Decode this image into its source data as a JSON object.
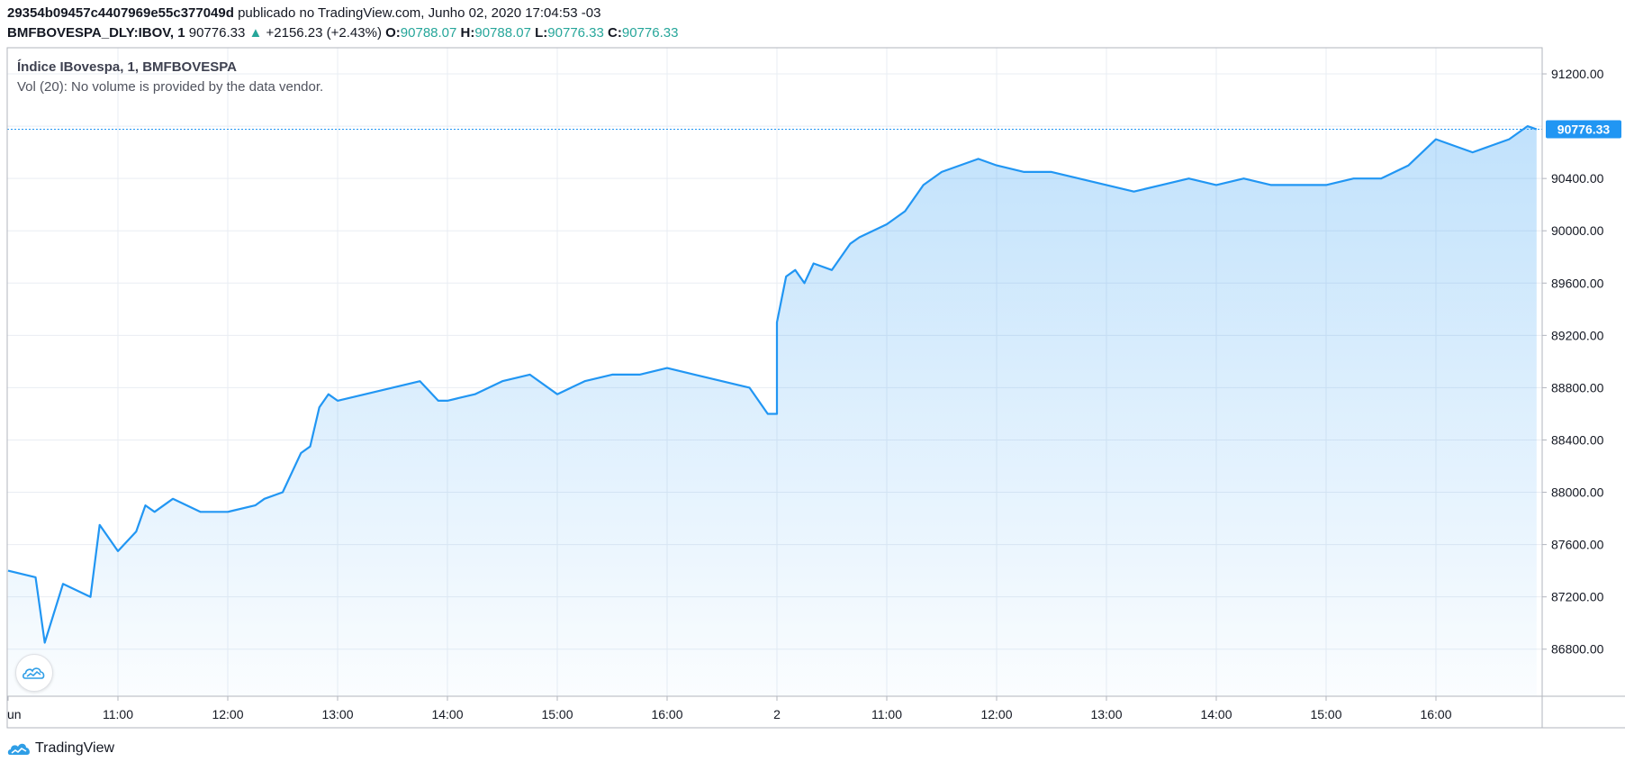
{
  "header": {
    "id": "29354b09457c4407969e55c377049d",
    "published": "publicado no TradingView.com, Junho 02, 2020 17:04:53 -03",
    "symbol": "BMFBOVESPA_DLY:IBOV, 1",
    "last": "90776.33",
    "change_arrow": "▲",
    "change": "+2156.23 (+2.43%)",
    "o_label": "O:",
    "o_value": "90788.07",
    "h_label": "H:",
    "h_value": "90788.07",
    "l_label": "L:",
    "l_value": "90776.33",
    "c_label": "C:",
    "c_value": "90776.33"
  },
  "overlay": {
    "title": "Índice IBovespa, 1, BMFBOVESPA",
    "volume": "Vol (20): No volume is provided by the data vendor."
  },
  "footer": {
    "brand": "TradingView"
  },
  "colors": {
    "line": "#2196f3",
    "price_label_bg": "#2196f3",
    "up": "#26a69a",
    "grid": "#e9edf3"
  },
  "chart_data": {
    "type": "area",
    "x_ticks": [
      "un",
      "11:00",
      "12:00",
      "13:00",
      "14:00",
      "15:00",
      "16:00",
      "2",
      "11:00",
      "12:00",
      "13:00",
      "14:00",
      "15:00",
      "16:00"
    ],
    "y_ticks": [
      91200,
      90800,
      90400,
      90000,
      89600,
      89200,
      88800,
      88400,
      88000,
      87600,
      87200,
      86800
    ],
    "y_tick_labels": [
      "91200.00",
      "90400.00",
      "90000.00",
      "89600.00",
      "89200.00",
      "88800.00",
      "88400.00",
      "88000.00",
      "87600.00",
      "87200.00",
      "86800.00"
    ],
    "ylim": [
      86440,
      91400
    ],
    "last_price_label": "90776.33",
    "x": [
      "06-01 10:00",
      "06-01 10:15",
      "06-01 10:20",
      "06-01 10:30",
      "06-01 10:45",
      "06-01 10:50",
      "06-01 11:00",
      "06-01 11:10",
      "06-01 11:15",
      "06-01 11:20",
      "06-01 11:30",
      "06-01 11:45",
      "06-01 12:00",
      "06-01 12:15",
      "06-01 12:20",
      "06-01 12:30",
      "06-01 12:40",
      "06-01 12:45",
      "06-01 12:50",
      "06-01 12:55",
      "06-01 13:00",
      "06-01 13:15",
      "06-01 13:30",
      "06-01 13:45",
      "06-01 13:55",
      "06-01 14:00",
      "06-01 14:15",
      "06-01 14:30",
      "06-01 14:45",
      "06-01 15:00",
      "06-01 15:15",
      "06-01 15:30",
      "06-01 15:45",
      "06-01 16:00",
      "06-01 16:15",
      "06-01 16:30",
      "06-01 16:45",
      "06-01 16:55",
      "06-01 17:00",
      "06-02 10:00",
      "06-02 10:05",
      "06-02 10:10",
      "06-02 10:15",
      "06-02 10:20",
      "06-02 10:30",
      "06-02 10:40",
      "06-02 10:45",
      "06-02 11:00",
      "06-02 11:10",
      "06-02 11:20",
      "06-02 11:30",
      "06-02 11:40",
      "06-02 11:50",
      "06-02 12:00",
      "06-02 12:15",
      "06-02 12:30",
      "06-02 12:45",
      "06-02 13:00",
      "06-02 13:15",
      "06-02 13:30",
      "06-02 13:45",
      "06-02 14:00",
      "06-02 14:15",
      "06-02 14:30",
      "06-02 14:45",
      "06-02 15:00",
      "06-02 15:15",
      "06-02 15:30",
      "06-02 15:45",
      "06-02 16:00",
      "06-02 16:10",
      "06-02 16:20",
      "06-02 16:30",
      "06-02 16:40",
      "06-02 16:50",
      "06-02 16:55"
    ],
    "values": [
      87400,
      87350,
      86850,
      87300,
      87200,
      87750,
      87550,
      87700,
      87900,
      87850,
      87950,
      87850,
      87850,
      87900,
      87950,
      88000,
      88300,
      88350,
      88650,
      88750,
      88700,
      88750,
      88800,
      88850,
      88700,
      88700,
      88750,
      88850,
      88900,
      88750,
      88850,
      88900,
      88900,
      88950,
      88900,
      88850,
      88800,
      88600,
      88600,
      89300,
      89650,
      89700,
      89600,
      89750,
      89700,
      89900,
      89950,
      90050,
      90150,
      90350,
      90450,
      90500,
      90550,
      90500,
      90450,
      90450,
      90400,
      90350,
      90300,
      90350,
      90400,
      90350,
      90400,
      90350,
      90350,
      90350,
      90400,
      90400,
      90500,
      90700,
      90650,
      90600,
      90650,
      90700,
      90800,
      90776
    ],
    "title": "Índice IBovespa, 1, BMFBOVESPA"
  }
}
